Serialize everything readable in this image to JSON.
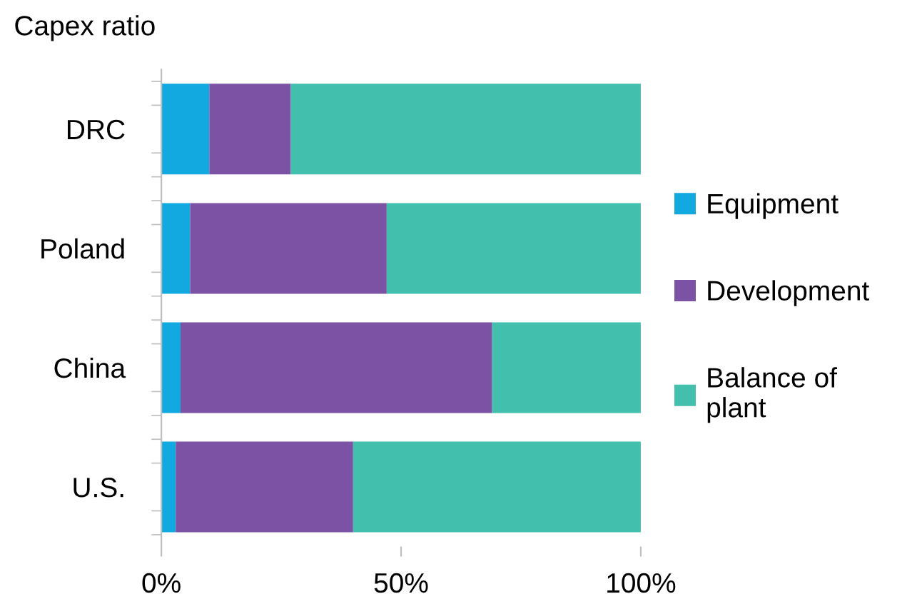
{
  "chart_data": {
    "type": "bar",
    "orientation": "horizontal",
    "stacked": true,
    "title": "Capex ratio",
    "categories": [
      "DRC",
      "Poland",
      "China",
      "U.S."
    ],
    "series": [
      {
        "name": "Equipment",
        "color": "#12a9e0",
        "values": [
          10,
          6,
          4,
          3
        ]
      },
      {
        "name": "Development",
        "color": "#7b52a4",
        "values": [
          17,
          41,
          65,
          37
        ]
      },
      {
        "name": "Balance of\nplant",
        "color": "#43bfad",
        "values": [
          73,
          53,
          31,
          60
        ]
      }
    ],
    "xlim": [
      0,
      100
    ],
    "xticks": [
      {
        "value": 0,
        "label": "0%"
      },
      {
        "value": 50,
        "label": "50%"
      },
      {
        "value": 100,
        "label": "100%"
      }
    ],
    "grid": false,
    "legend": "right"
  }
}
